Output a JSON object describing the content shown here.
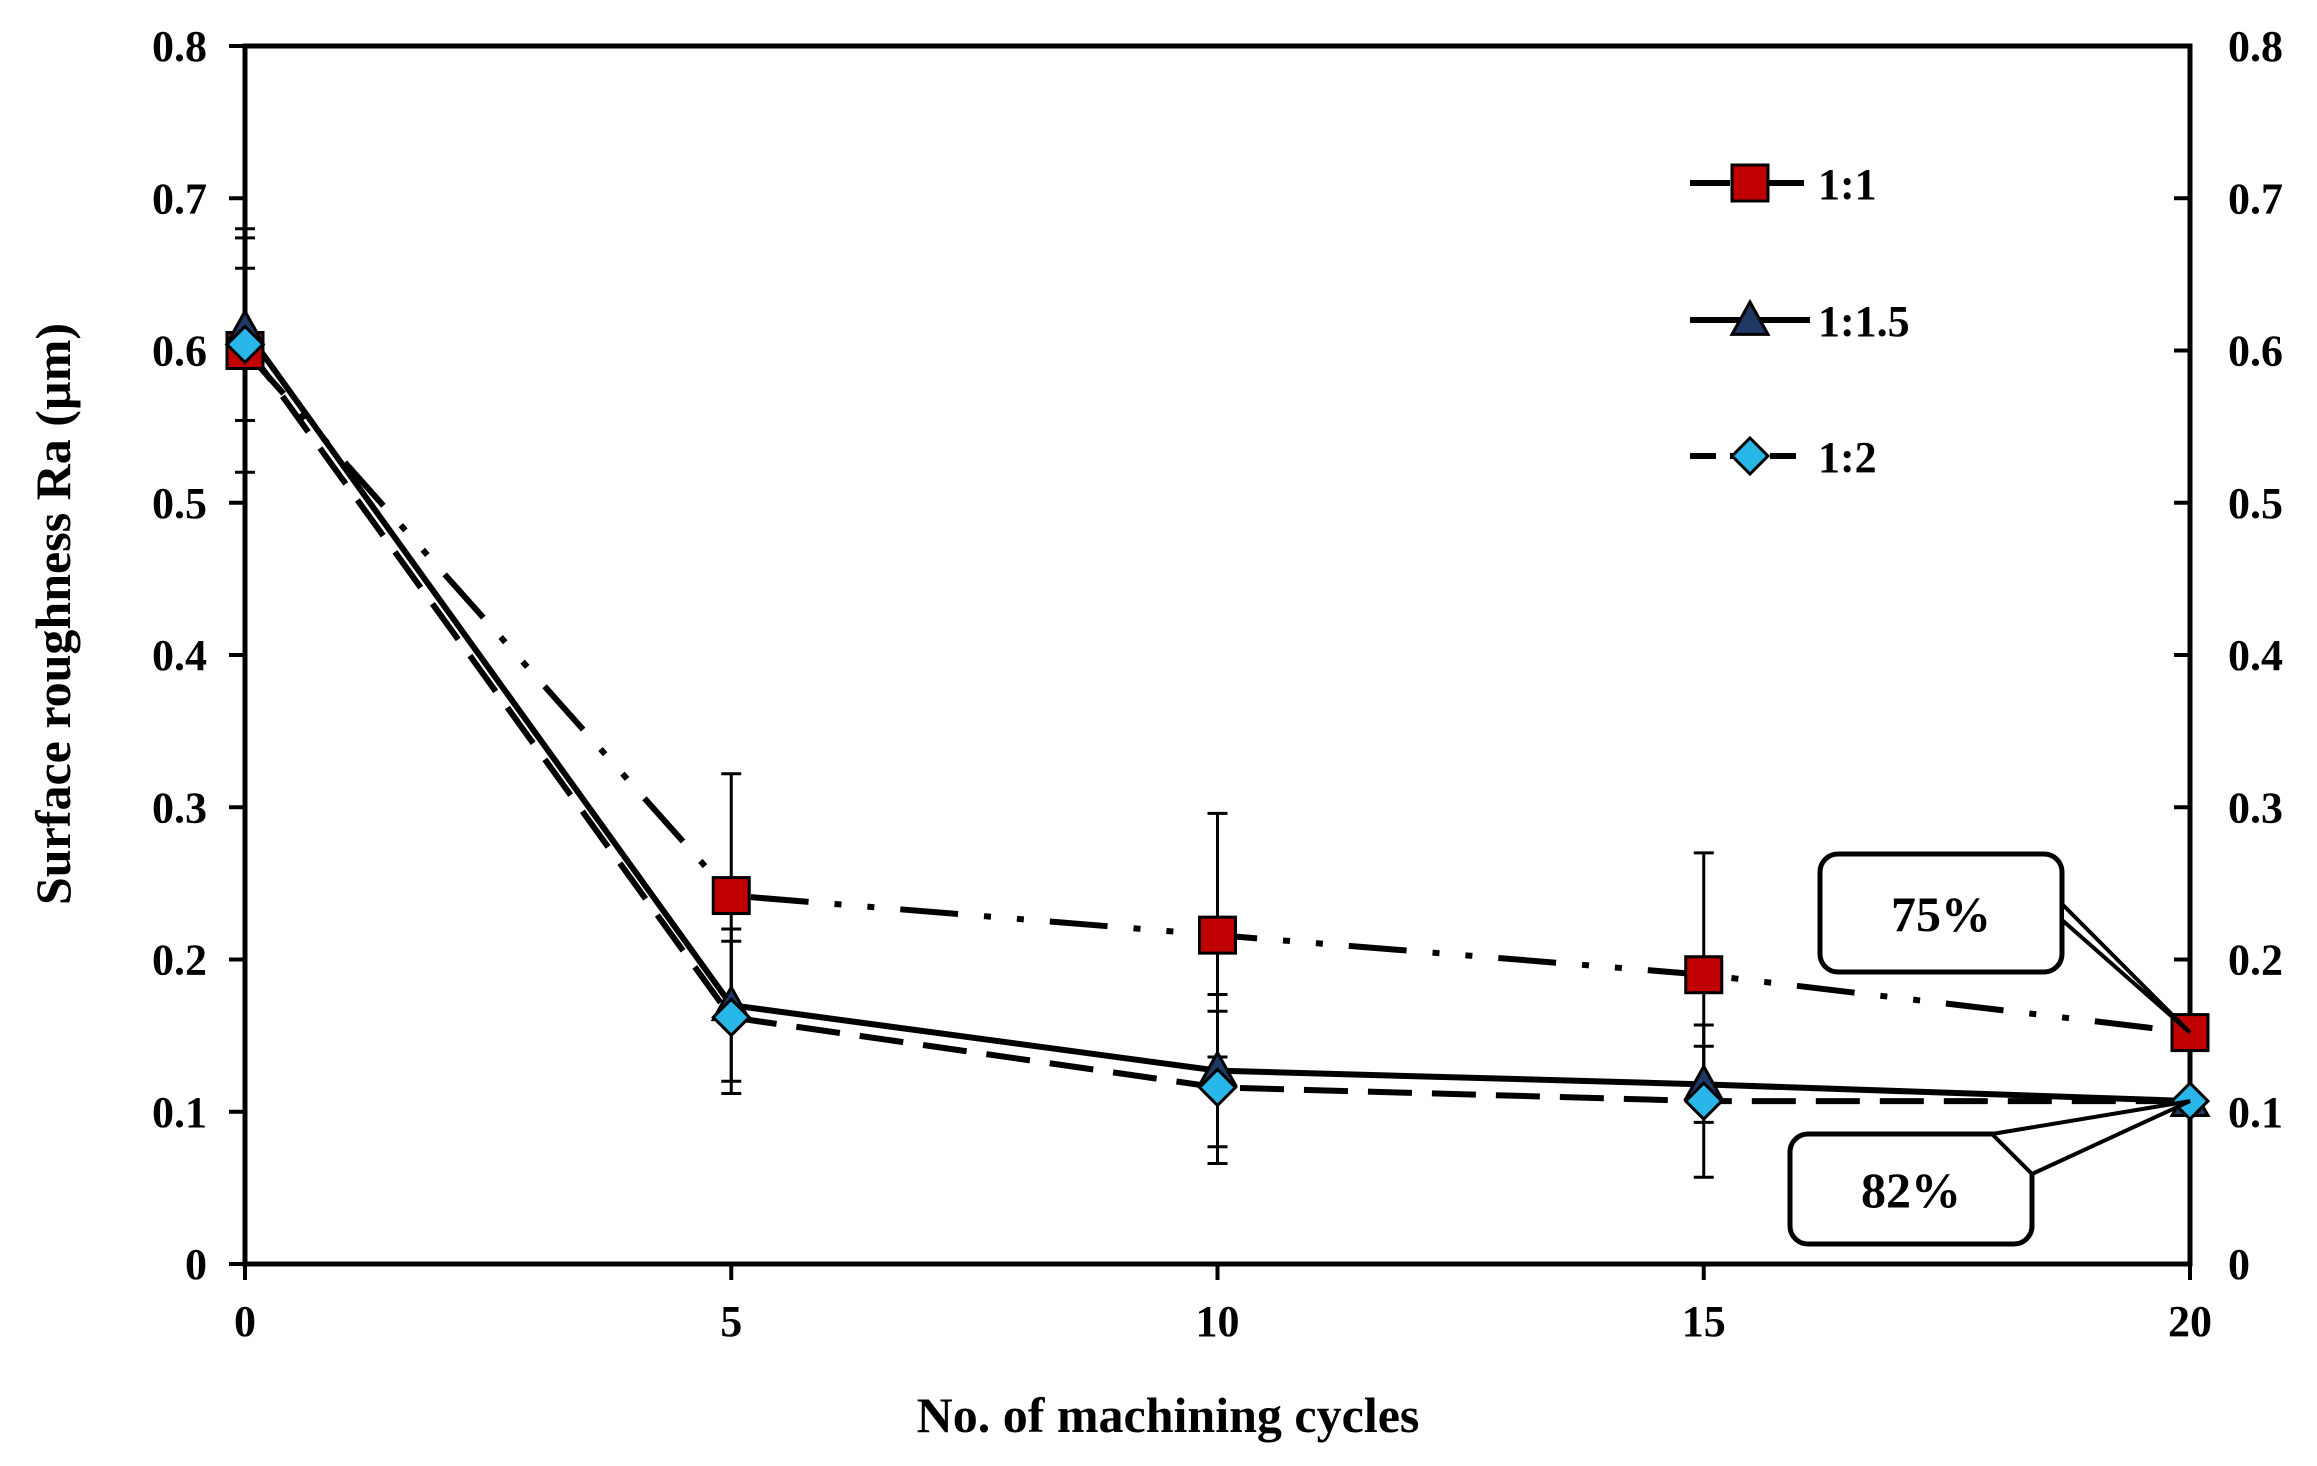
{
  "chart_data": {
    "type": "line",
    "xlabel": "No. of machining cycles",
    "ylabel": "Surface roughness Ra (µm)",
    "xlim": [
      0,
      20
    ],
    "ylim": [
      0,
      0.8
    ],
    "x_ticks": [
      "0",
      "5",
      "10",
      "15",
      "20"
    ],
    "y_ticks": [
      "0",
      "0.1",
      "0.2",
      "0.3",
      "0.4",
      "0.5",
      "0.6",
      "0.7",
      "0.8"
    ],
    "y2_ticks": [
      "0",
      "0.1",
      "0.2",
      "0.3",
      "0.4",
      "0.5",
      "0.6",
      "0.7",
      "0.8"
    ],
    "grid": false,
    "legend_position": "top-right",
    "series": [
      {
        "name": "1:1",
        "marker": "square",
        "line_style": "dash-dot-dot",
        "marker_color": "#c00000",
        "x": [
          0,
          5,
          10,
          15,
          20
        ],
        "y": [
          0.6,
          0.242,
          0.216,
          0.19,
          0.152
        ],
        "error": [
          0.08,
          0.08,
          0.08,
          0.08,
          0.0
        ]
      },
      {
        "name": "1:1.5",
        "marker": "triangle",
        "line_style": "solid",
        "marker_color": "#1f3864",
        "x": [
          0,
          5,
          10,
          15,
          20
        ],
        "y": [
          0.614,
          0.17,
          0.127,
          0.118,
          0.107
        ],
        "error": [
          0.06,
          0.05,
          0.05,
          0.025,
          0.0
        ]
      },
      {
        "name": "1:2",
        "marker": "diamond",
        "line_style": "dashed",
        "marker_color": "#29b6e8",
        "x": [
          0,
          5,
          10,
          15,
          20
        ],
        "y": [
          0.604,
          0.162,
          0.116,
          0.107,
          0.107
        ],
        "error": [
          0.05,
          0.05,
          0.05,
          0.05,
          0.0
        ]
      }
    ],
    "annotations": [
      {
        "text": "75%",
        "target_series": "1:1",
        "target_x": 20,
        "target_y": 0.152
      },
      {
        "text": "82%",
        "target_series": "1:1.5",
        "target_x": 20,
        "target_y": 0.107
      }
    ]
  }
}
